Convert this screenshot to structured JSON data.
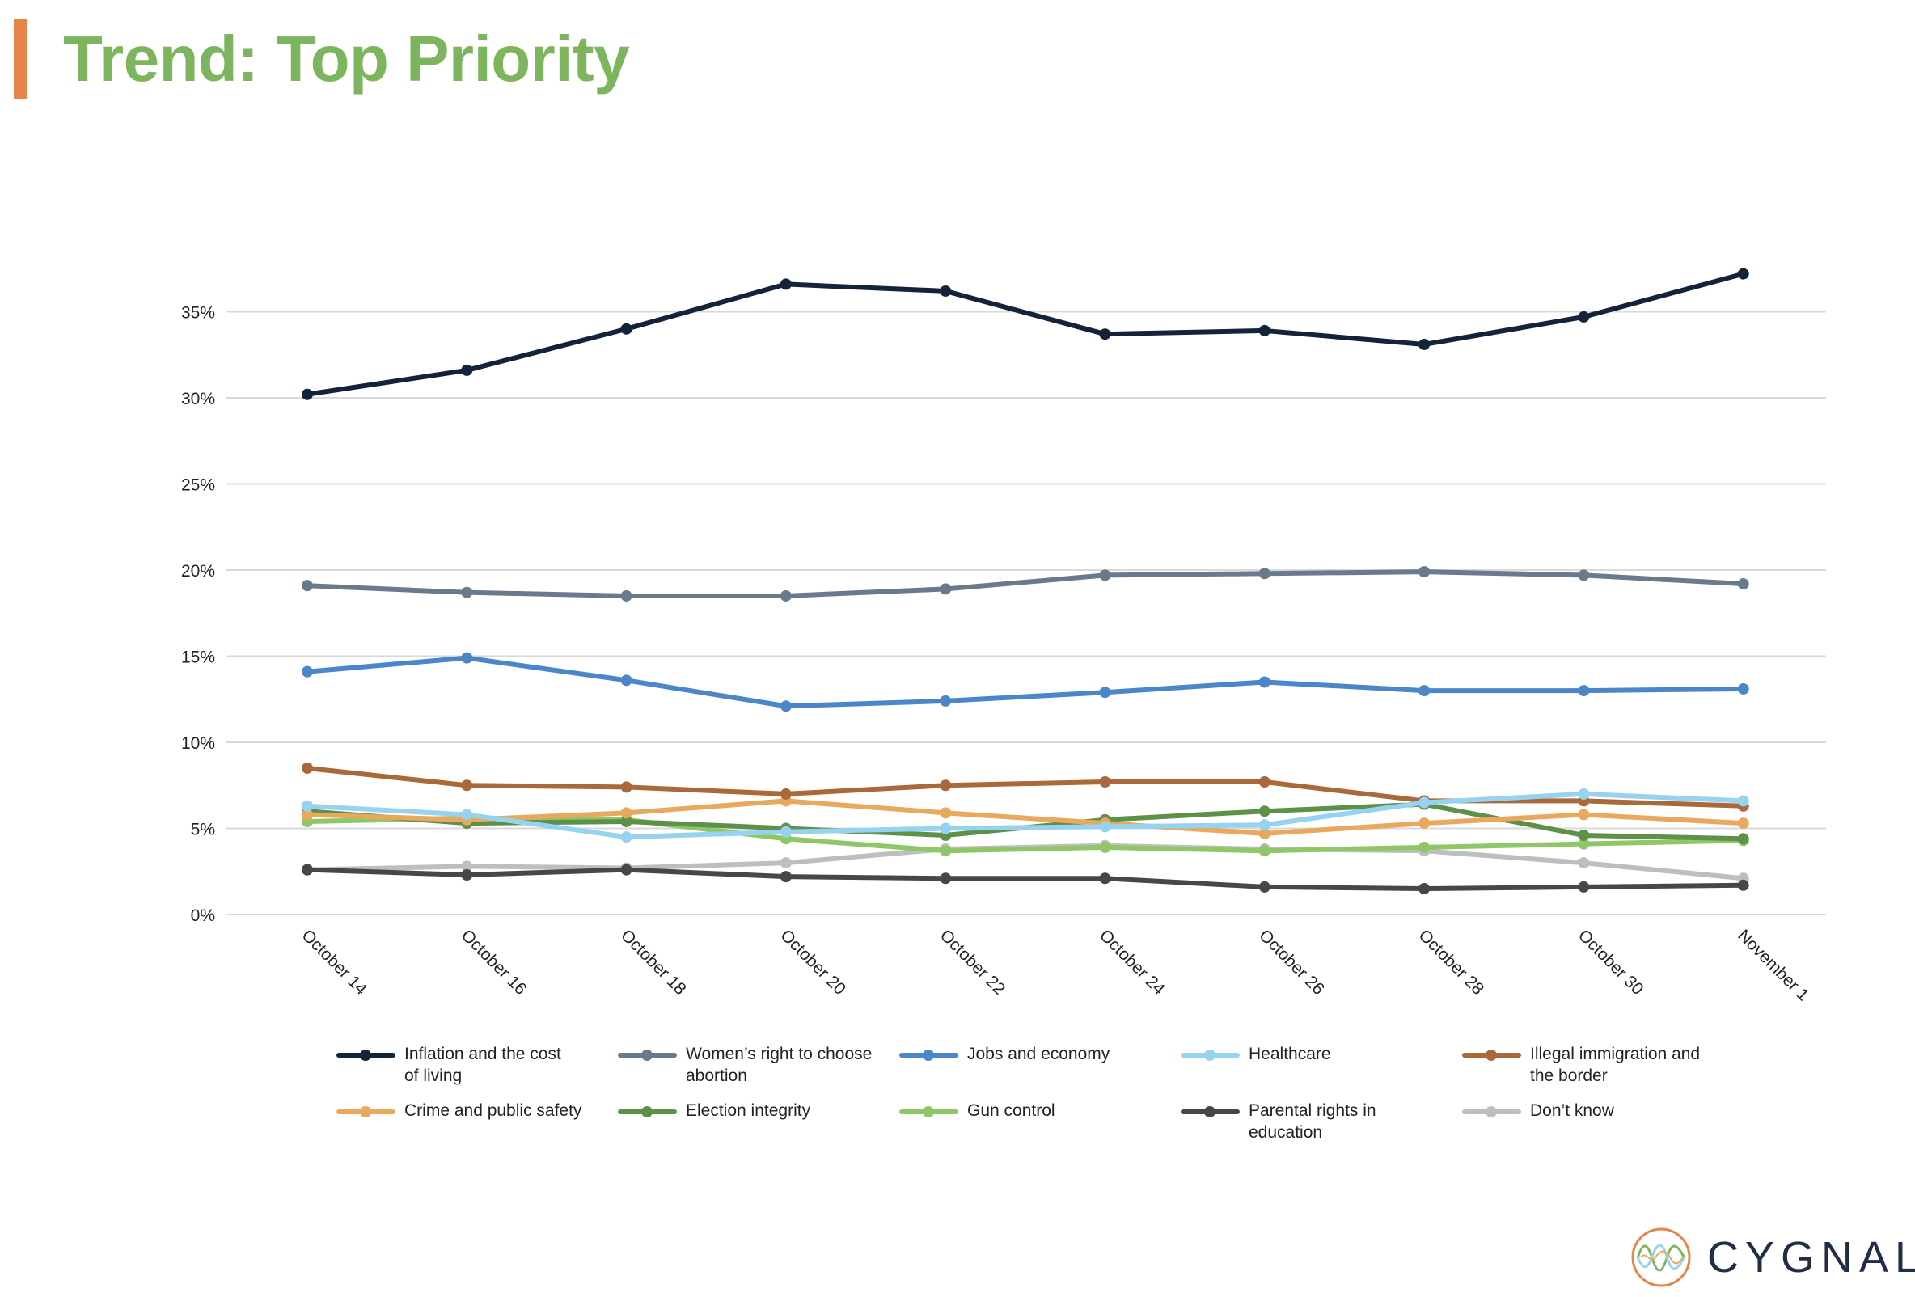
{
  "title": "Trend: Top Priority",
  "colors": {
    "title": "#7db55e",
    "accent_bar": "#e8834a",
    "grid": "#d9d9d9",
    "logo_text": "#1f2d45"
  },
  "logo": {
    "text": "CYGNAL",
    "icon": "cygnal-wave-logo-icon"
  },
  "chart_data": {
    "type": "line",
    "title": "Trend: Top Priority",
    "xlabel": "",
    "ylabel": "",
    "ylim": [
      0,
      35
    ],
    "ytick_values": [
      0,
      5,
      10,
      15,
      20,
      25,
      30,
      35
    ],
    "ytick_labels": [
      "0%",
      "5%",
      "10%",
      "15%",
      "20%",
      "25%",
      "30%",
      "35%"
    ],
    "grid": true,
    "legend_position": "bottom",
    "categories": [
      "October 14",
      "October 16",
      "October 18",
      "October 20",
      "October 22",
      "October 24",
      "October 26",
      "October 28",
      "October 30",
      "November 1"
    ],
    "series": [
      {
        "name": "Inflation and the cost of living",
        "legend_lines": [
          "Inflation and the cost",
          "of living"
        ],
        "color": "#13243a",
        "values": [
          30.2,
          31.6,
          34.0,
          36.6,
          36.2,
          33.7,
          33.9,
          33.1,
          34.7,
          37.2
        ]
      },
      {
        "name": "Women’s right to choose abortion",
        "legend_lines": [
          "Women’s right to choose",
          "abortion"
        ],
        "color": "#697a8d",
        "values": [
          19.1,
          18.7,
          18.5,
          18.5,
          18.9,
          19.7,
          19.8,
          19.9,
          19.7,
          19.2
        ]
      },
      {
        "name": "Jobs and economy",
        "legend_lines": [
          "Jobs and economy"
        ],
        "color": "#4a86c8",
        "values": [
          14.1,
          14.9,
          13.6,
          12.1,
          12.4,
          12.9,
          13.5,
          13.0,
          13.0,
          13.1
        ]
      },
      {
        "name": "Healthcare",
        "legend_lines": [
          "Healthcare"
        ],
        "color": "#96d3f1",
        "values": [
          6.3,
          5.8,
          4.5,
          4.8,
          5.0,
          5.1,
          5.2,
          6.5,
          7.0,
          6.6
        ]
      },
      {
        "name": "Illegal immigration and the border",
        "legend_lines": [
          "Illegal immigration and",
          "the border"
        ],
        "color": "#a9693a",
        "values": [
          8.5,
          7.5,
          7.4,
          7.0,
          7.5,
          7.7,
          7.7,
          6.6,
          6.6,
          6.3
        ]
      },
      {
        "name": "Crime and public safety",
        "legend_lines": [
          "Crime and public safety"
        ],
        "color": "#e8a95e",
        "values": [
          5.8,
          5.5,
          5.9,
          6.6,
          5.9,
          5.3,
          4.7,
          5.3,
          5.8,
          5.3
        ]
      },
      {
        "name": "Election integrity",
        "legend_lines": [
          "Election integrity"
        ],
        "color": "#5d9048",
        "values": [
          6.0,
          5.3,
          5.4,
          5.0,
          4.6,
          5.5,
          6.0,
          6.4,
          4.6,
          4.4
        ]
      },
      {
        "name": "Gun control",
        "legend_lines": [
          "Gun control"
        ],
        "color": "#8ec765",
        "values": [
          5.4,
          5.6,
          5.5,
          4.4,
          3.7,
          3.9,
          3.7,
          3.9,
          4.1,
          4.3
        ]
      },
      {
        "name": "Parental rights in education",
        "legend_lines": [
          "Parental rights in",
          "education"
        ],
        "color": "#474747",
        "values": [
          2.6,
          2.3,
          2.6,
          2.2,
          2.1,
          2.1,
          1.6,
          1.5,
          1.6,
          1.7
        ]
      },
      {
        "name": "Don’t know",
        "legend_lines": [
          "Don’t know"
        ],
        "color": "#bebebe",
        "values": [
          2.6,
          2.8,
          2.7,
          3.0,
          3.8,
          4.0,
          3.8,
          3.7,
          3.0,
          2.1
        ]
      }
    ]
  }
}
